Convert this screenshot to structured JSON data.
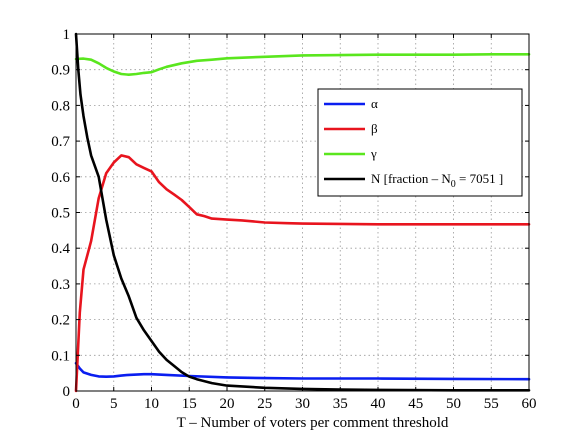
{
  "chart_data": {
    "type": "line",
    "xlabel": "T –  Number of voters per comment threshold",
    "ylabel": "",
    "xlim": [
      0,
      60
    ],
    "ylim": [
      0,
      1
    ],
    "xticks": [
      "0",
      "5",
      "10",
      "15",
      "20",
      "25",
      "30",
      "35",
      "40",
      "45",
      "50",
      "55",
      "60"
    ],
    "yticks": [
      "0",
      "0.1",
      "0.2",
      "0.3",
      "0.4",
      "0.5",
      "0.6",
      "0.7",
      "0.8",
      "0.9",
      "1"
    ],
    "grid": true,
    "legend_position": "right, inside",
    "series": [
      {
        "name": "α",
        "color": "#0a1ef0",
        "x": [
          0,
          0.5,
          1,
          2,
          3,
          4,
          5,
          6,
          7,
          8,
          9,
          10,
          12,
          15,
          20,
          25,
          30,
          40,
          50,
          60
        ],
        "y": [
          0.078,
          0.063,
          0.052,
          0.045,
          0.041,
          0.04,
          0.041,
          0.043,
          0.045,
          0.046,
          0.047,
          0.047,
          0.045,
          0.042,
          0.038,
          0.036,
          0.035,
          0.035,
          0.034,
          0.033
        ]
      },
      {
        "name": "β",
        "color": "#e8141e",
        "x": [
          0,
          0.5,
          1,
          2,
          3,
          4,
          5,
          6,
          7,
          8,
          9,
          10,
          11,
          12,
          13,
          14,
          15,
          16,
          17,
          18,
          20,
          22,
          25,
          28,
          30,
          35,
          40,
          50,
          60
        ],
        "y": [
          0.0,
          0.22,
          0.34,
          0.42,
          0.54,
          0.61,
          0.64,
          0.66,
          0.655,
          0.635,
          0.625,
          0.615,
          0.585,
          0.565,
          0.55,
          0.535,
          0.515,
          0.495,
          0.49,
          0.483,
          0.48,
          0.478,
          0.472,
          0.47,
          0.469,
          0.468,
          0.467,
          0.467,
          0.467
        ]
      },
      {
        "name": "γ",
        "color": "#5ae61e",
        "x": [
          0,
          1,
          2,
          3,
          4,
          5,
          6,
          7,
          8,
          9,
          10,
          11,
          12,
          14,
          16,
          18,
          20,
          25,
          30,
          40,
          50,
          55,
          60
        ],
        "y": [
          0.93,
          0.931,
          0.928,
          0.918,
          0.905,
          0.895,
          0.888,
          0.886,
          0.888,
          0.891,
          0.893,
          0.901,
          0.908,
          0.918,
          0.925,
          0.928,
          0.932,
          0.936,
          0.94,
          0.942,
          0.942,
          0.943,
          0.943
        ]
      },
      {
        "name": "N [fraction – N",
        "name_sub": "0",
        "name_tail": " = 7051 ]",
        "color": "#000000",
        "x": [
          0,
          0.3,
          0.6,
          1,
          1.5,
          2,
          3,
          4,
          5,
          6,
          7,
          8,
          9,
          10,
          11,
          12,
          13,
          14,
          15,
          16,
          18,
          20,
          25,
          30,
          35,
          40,
          50,
          60
        ],
        "y": [
          1.0,
          0.9,
          0.83,
          0.77,
          0.71,
          0.66,
          0.6,
          0.48,
          0.38,
          0.315,
          0.265,
          0.205,
          0.17,
          0.14,
          0.11,
          0.087,
          0.07,
          0.053,
          0.04,
          0.033,
          0.022,
          0.015,
          0.009,
          0.006,
          0.004,
          0.003,
          0.002,
          0.002
        ]
      }
    ]
  }
}
